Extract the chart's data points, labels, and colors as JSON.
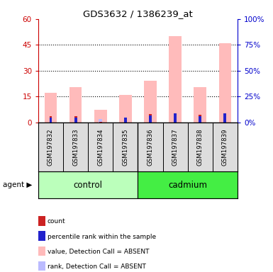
{
  "title": "GDS3632 / 1386239_at",
  "samples": [
    "GSM197832",
    "GSM197833",
    "GSM197834",
    "GSM197835",
    "GSM197836",
    "GSM197837",
    "GSM197838",
    "GSM197839"
  ],
  "pink_values": [
    17.0,
    20.5,
    7.5,
    16.0,
    24.0,
    50.0,
    20.5,
    46.0
  ],
  "red_values": [
    3.5,
    3.5,
    0.5,
    2.5,
    5.0,
    1.0,
    4.5,
    0.0
  ],
  "blue_values": [
    4.5,
    4.5,
    0.0,
    4.5,
    6.5,
    9.0,
    6.0,
    9.0
  ],
  "lav_values": [
    0.0,
    0.0,
    3.0,
    0.0,
    0.0,
    0.0,
    0.0,
    0.0
  ],
  "ylim_left": [
    0,
    60
  ],
  "yticks_left": [
    0,
    15,
    30,
    45,
    60
  ],
  "ylim_right": [
    0,
    100
  ],
  "yticks_right": [
    0,
    25,
    50,
    75,
    100
  ],
  "left_color": "#cc0000",
  "right_color": "#0000cc",
  "bar_width": 0.5,
  "control_color": "#bbffbb",
  "cadmium_color": "#44ee44",
  "legend_items": [
    {
      "label": "count",
      "color": "#cc2222"
    },
    {
      "label": "percentile rank within the sample",
      "color": "#2222cc"
    },
    {
      "label": "value, Detection Call = ABSENT",
      "color": "#ffbbbb"
    },
    {
      "label": "rank, Detection Call = ABSENT",
      "color": "#bbbbff"
    }
  ]
}
